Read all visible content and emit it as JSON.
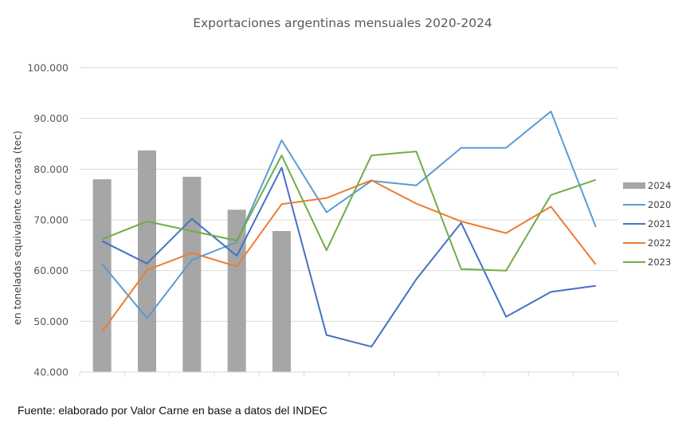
{
  "chart_data": {
    "type": "bar+line",
    "title": "Exportaciones argentinas mensuales 2020-2024",
    "ylabel": "en toneladas equivalente carcasa (tec)",
    "xlabel": "",
    "ylim": [
      40000,
      100000
    ],
    "yticks": [
      {
        "value": 40000,
        "label": "40.000"
      },
      {
        "value": 50000,
        "label": "50.000"
      },
      {
        "value": 60000,
        "label": "60.000"
      },
      {
        "value": 70000,
        "label": "70.000"
      },
      {
        "value": 80000,
        "label": "80.000"
      },
      {
        "value": 90000,
        "label": "90.000"
      },
      {
        "value": 100000,
        "label": "100.000"
      }
    ],
    "months": 12,
    "grid": "horizontal",
    "legend_position": "right",
    "bar_series": {
      "name": "2024",
      "color": "#a6a6a6",
      "values": [
        78000,
        83700,
        78500,
        72000,
        67800
      ]
    },
    "line_series": [
      {
        "name": "2020",
        "color": "#5b9bd5",
        "values": [
          61300,
          50600,
          62100,
          65600,
          85700,
          71500,
          77700,
          76800,
          84200,
          84200,
          91400,
          68600
        ]
      },
      {
        "name": "2021",
        "color": "#4472c4",
        "values": [
          65800,
          61400,
          70200,
          62900,
          80300,
          47300,
          45000,
          58300,
          69400,
          50900,
          55800,
          57000
        ]
      },
      {
        "name": "2022",
        "color": "#ed7d31",
        "values": [
          48000,
          60100,
          63500,
          60800,
          73100,
          74300,
          77800,
          73200,
          69700,
          67400,
          72600,
          61200
        ]
      },
      {
        "name": "2023",
        "color": "#70ad47",
        "values": [
          66200,
          69700,
          67800,
          65900,
          82700,
          64000,
          82700,
          83500,
          60300,
          60000,
          74900,
          77900
        ]
      }
    ]
  },
  "source_note": "Fuente: elaborado por  Valor Carne en base a datos del INDEC"
}
